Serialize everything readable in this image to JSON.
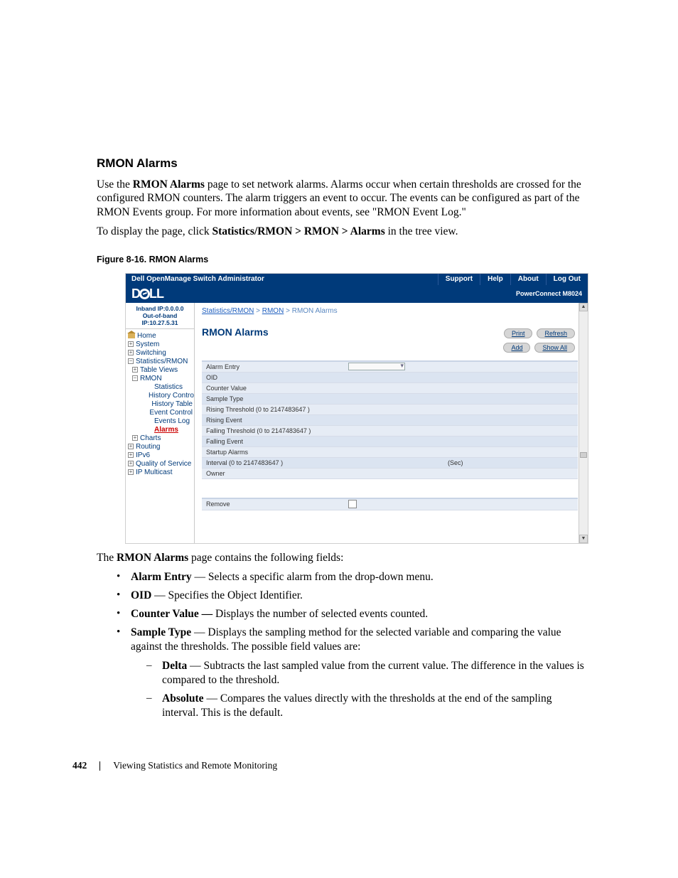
{
  "doc": {
    "heading": "RMON Alarms",
    "para1_a": "Use the ",
    "para1_b": "RMON Alarms",
    "para1_c": " page to set network alarms. Alarms occur when certain thresholds are crossed for the configured RMON counters. The alarm triggers an event to occur. The events can be configured as part of the RMON Events group. For more information about events, see \"RMON Event Log.\"",
    "para2_a": "To display the page, click ",
    "para2_b": "Statistics/RMON > RMON > Alarms",
    "para2_c": " in the tree view.",
    "figcap": "Figure 8-16.    RMON Alarms",
    "after": "page contains the following fields:",
    "after_bold": "RMON Alarms",
    "bullets": [
      {
        "term": "Alarm Entry",
        "rest": " — Selects a specific alarm from the drop-down menu."
      },
      {
        "term": "OID",
        "rest": " — Specifies the Object Identifier."
      },
      {
        "term": "Counter Value —",
        "rest": " Displays the number of selected events counted."
      },
      {
        "term": "Sample Type",
        "rest": " — Displays the sampling method for the selected variable and comparing the value against the thresholds. The possible field values are:"
      }
    ],
    "sub_bullets": [
      {
        "term": "Delta",
        "rest": " — Subtracts the last sampled value from the current value. The difference in the values is compared to the threshold."
      },
      {
        "term": "Absolute",
        "rest": " — Compares the values directly with the thresholds at the end of the sampling interval. This is the default."
      }
    ],
    "page_number": "442",
    "footer_text": "Viewing Statistics and Remote Monitoring"
  },
  "shot": {
    "title": "Dell OpenManage Switch Administrator",
    "topnav": [
      "Support",
      "Help",
      "About",
      "Log Out"
    ],
    "product": "PowerConnect M8024",
    "ip_line1": "Inband IP:0.0.0.0",
    "ip_line2": "Out-of-band IP:10.27.5.31",
    "tree": {
      "home": "Home",
      "system": "System",
      "switching": "Switching",
      "stats": "Statistics/RMON",
      "table_views": "Table Views",
      "rmon": "RMON",
      "statistics": "Statistics",
      "history_control": "History Control",
      "history_table": "History Table",
      "event_control": "Event Control",
      "events_log": "Events Log",
      "alarms": "Alarms",
      "charts": "Charts",
      "routing": "Routing",
      "ipv6": "IPv6",
      "qos": "Quality of Service",
      "ipmc": "IP Multicast"
    },
    "breadcrumb": {
      "a": "Statistics/RMON",
      "b": "RMON",
      "c": "RMON Alarms"
    },
    "main_title": "RMON Alarms",
    "buttons": {
      "print": "Print",
      "refresh": "Refresh",
      "add": "Add",
      "show_all": "Show All"
    },
    "form_rows": {
      "alarm_entry": "Alarm Entry",
      "oid": "OID",
      "counter_value": "Counter Value",
      "sample_type": "Sample Type",
      "rising_threshold": "Rising Threshold (0 to 2147483647 )",
      "rising_event": "Rising Event",
      "falling_threshold": "Falling Threshold (0 to 2147483647 )",
      "falling_event": "Falling Event",
      "startup_alarms": "Startup Alarms",
      "interval": "Interval (0 to 2147483647 )",
      "interval_unit": "(Sec)",
      "owner": "Owner",
      "remove": "Remove"
    }
  },
  "colors": {
    "dell_blue": "#003a7a",
    "row_bg": "#e6ecf5"
  }
}
